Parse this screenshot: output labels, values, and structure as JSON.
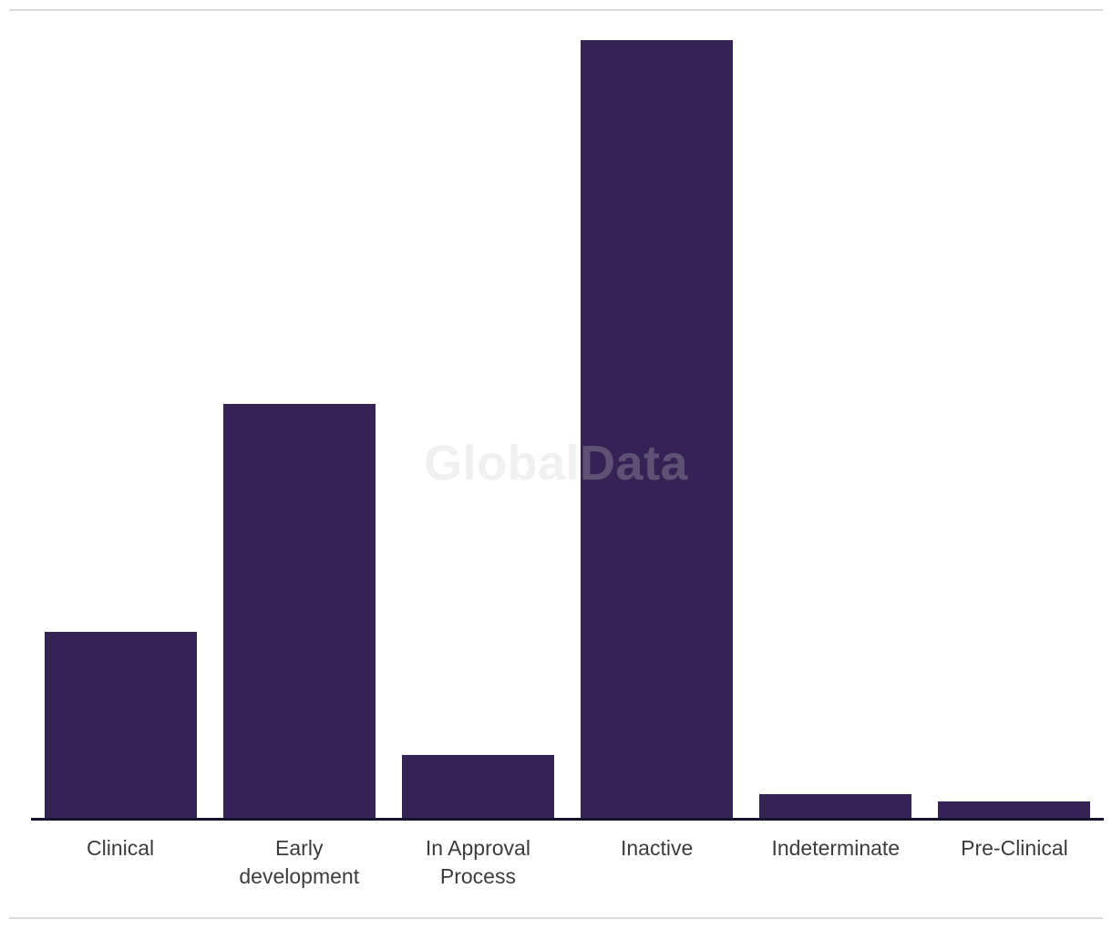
{
  "watermark": "GlobalData",
  "colors": {
    "bar": "#352355",
    "axis_line": "#14142d",
    "axis_label": "#3c3c3c",
    "divider": "#dbdbdb",
    "watermark": "rgba(200,200,200,0.28)"
  },
  "chart_data": {
    "type": "bar",
    "categories": [
      "Clinical",
      "Early development",
      "In Approval Process",
      "Inactive",
      "Indeterminate",
      "Pre-Clinical"
    ],
    "values": [
      23.9,
      53.2,
      8.1,
      100,
      3.0,
      2.1
    ],
    "value_note": "relative bar heights as % of tallest bar; chart shows no y-axis, gridlines or data labels",
    "title": "",
    "xlabel": "",
    "ylabel": "",
    "ylim": [
      0,
      100
    ],
    "grid": false,
    "legend": "none"
  }
}
